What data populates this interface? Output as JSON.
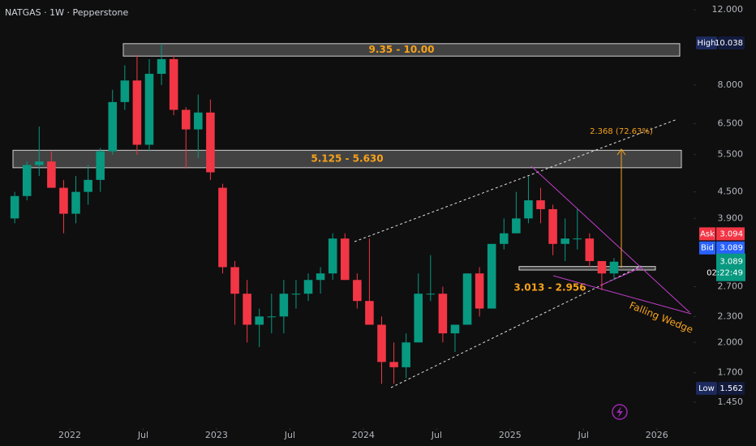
{
  "chart_data": {
    "type": "candlestick",
    "title": "NATGAS · 1W · Pepperstone",
    "log_scale": true,
    "up_color": "#089981",
    "down_color": "#f23645",
    "x": [
      "2021-08",
      "2021-09",
      "2021-10",
      "2021-11",
      "2021-12",
      "2022-01",
      "2022-02",
      "2022-03",
      "2022-04",
      "2022-05",
      "2022-06",
      "2022-07",
      "2022-08",
      "2022-09",
      "2022-10",
      "2022-11",
      "2022-12",
      "2023-01",
      "2023-02",
      "2023-03",
      "2023-04",
      "2023-05",
      "2023-06",
      "2023-07",
      "2023-08",
      "2023-09",
      "2023-10",
      "2023-11",
      "2023-12",
      "2024-01",
      "2024-02",
      "2024-03",
      "2024-04",
      "2024-05",
      "2024-06",
      "2024-07",
      "2024-08",
      "2024-09",
      "2024-10",
      "2024-11",
      "2024-12",
      "2025-01",
      "2025-02",
      "2025-03",
      "2025-04",
      "2025-05",
      "2025-06",
      "2025-07",
      "2025-08",
      "2025-09"
    ],
    "open": [
      3.9,
      4.4,
      5.2,
      5.3,
      4.6,
      4.0,
      4.5,
      4.8,
      5.6,
      7.3,
      8.2,
      5.8,
      8.5,
      9.2,
      7.0,
      6.3,
      6.9,
      4.6,
      3.0,
      2.6,
      2.2,
      2.3,
      2.3,
      2.6,
      2.6,
      2.8,
      2.9,
      3.5,
      2.8,
      2.5,
      2.2,
      1.8,
      1.75,
      2.0,
      2.6,
      2.6,
      2.1,
      2.2,
      2.9,
      2.4,
      3.4,
      3.6,
      3.9,
      4.3,
      4.1,
      3.4,
      3.5,
      3.5,
      3.1,
      2.9
    ],
    "high": [
      4.5,
      5.3,
      6.4,
      5.6,
      4.8,
      4.9,
      5.2,
      5.7,
      7.8,
      8.9,
      9.4,
      9.2,
      10.0,
      9.4,
      7.1,
      7.6,
      7.4,
      4.7,
      3.1,
      2.8,
      2.4,
      2.6,
      2.8,
      2.8,
      2.9,
      3.0,
      3.6,
      3.6,
      2.9,
      3.5,
      2.3,
      2.0,
      2.1,
      2.9,
      3.2,
      2.7,
      2.2,
      2.9,
      3.0,
      3.4,
      3.9,
      4.5,
      4.9,
      4.6,
      4.2,
      3.9,
      4.1,
      3.6,
      3.1,
      3.15
    ],
    "low": [
      3.8,
      4.3,
      4.9,
      4.6,
      3.6,
      3.8,
      4.2,
      4.5,
      5.5,
      7.0,
      5.5,
      5.6,
      8.0,
      6.8,
      5.1,
      5.4,
      4.8,
      2.9,
      2.2,
      2.0,
      1.95,
      2.1,
      2.1,
      2.4,
      2.5,
      2.6,
      2.8,
      2.8,
      2.4,
      2.2,
      1.6,
      1.6,
      1.65,
      2.0,
      2.5,
      2.0,
      1.9,
      2.2,
      2.3,
      2.4,
      3.3,
      3.6,
      3.8,
      3.8,
      3.2,
      3.1,
      3.3,
      3.0,
      2.65,
      2.8
    ],
    "close": [
      4.4,
      5.2,
      5.3,
      4.6,
      4.0,
      4.5,
      4.8,
      5.6,
      7.3,
      8.2,
      5.8,
      8.5,
      9.2,
      7.0,
      6.3,
      6.9,
      5.0,
      3.0,
      2.6,
      2.2,
      2.3,
      2.3,
      2.6,
      2.6,
      2.8,
      2.9,
      3.5,
      2.8,
      2.5,
      2.2,
      1.8,
      1.75,
      2.0,
      2.6,
      2.6,
      2.1,
      2.2,
      2.9,
      2.4,
      3.4,
      3.6,
      3.9,
      4.3,
      4.1,
      3.4,
      3.5,
      3.5,
      3.1,
      2.9,
      3.089
    ],
    "xlim": [
      "2021-08",
      "2026-04"
    ],
    "xticks": [
      {
        "value": "2022-01",
        "label": "2022"
      },
      {
        "value": "2022-07",
        "label": "Jul"
      },
      {
        "value": "2023-01",
        "label": "2023"
      },
      {
        "value": "2023-07",
        "label": "Jul"
      },
      {
        "value": "2024-01",
        "label": "2024"
      },
      {
        "value": "2024-07",
        "label": "Jul"
      },
      {
        "value": "2025-01",
        "label": "2025"
      },
      {
        "value": "2025-07",
        "label": "Jul"
      },
      {
        "value": "2026-01",
        "label": "2026"
      }
    ],
    "ylim": [
      1.17,
      12.65
    ],
    "yticks": [
      {
        "value": 12,
        "label": "12.000"
      },
      {
        "value": 8,
        "label": "8.000"
      },
      {
        "value": 6.5,
        "label": "6.500"
      },
      {
        "value": 5.5,
        "label": "5.500"
      },
      {
        "value": 4.5,
        "label": "4.500"
      },
      {
        "value": 3.9,
        "label": "3.900"
      },
      {
        "value": 2.7,
        "label": "2.700"
      },
      {
        "value": 2.3,
        "label": "2.300"
      },
      {
        "value": 2,
        "label": "2.000"
      },
      {
        "value": 1.7,
        "label": "1.700"
      },
      {
        "value": 1.45,
        "label": "1.450"
      }
    ],
    "zones": [
      {
        "label": "9.35 - 10.00",
        "low": 9.35,
        "high": 10.0
      },
      {
        "label": "5.125 - 5.630",
        "low": 5.125,
        "high": 5.63
      },
      {
        "label": "3.013 - 2.956",
        "low": 2.956,
        "high": 3.013
      }
    ],
    "target_label": "2.368 (72.63%)",
    "pattern_label": "Falling Wedge",
    "price_labels": {
      "high": {
        "name": "High",
        "value": 10.038
      },
      "ask": {
        "name": "Ask",
        "value": 3.094
      },
      "bid": {
        "name": "Bid",
        "value": 3.089
      },
      "last": {
        "value": 3.089,
        "countdown": "02:22:49"
      },
      "low": {
        "name": "Low",
        "value": 1.562
      }
    }
  }
}
